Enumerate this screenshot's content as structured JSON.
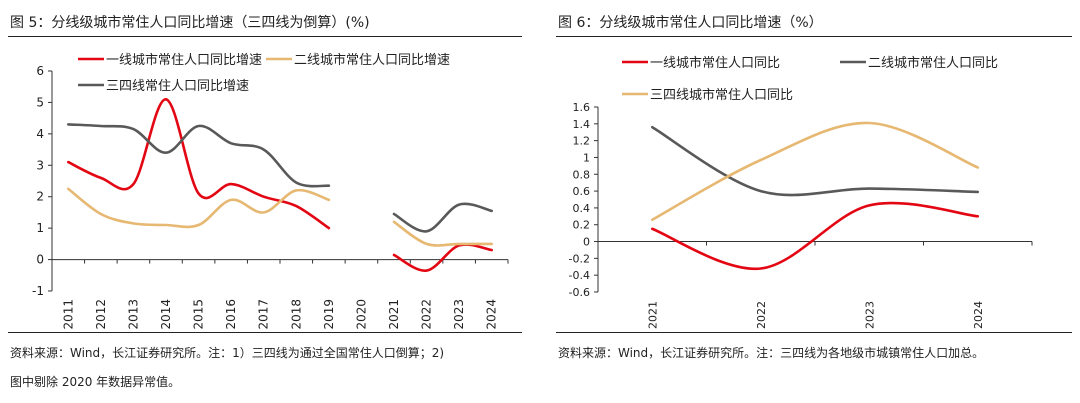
{
  "figures": {
    "left": {
      "title": "图 5：分线级城市常住人口同比增速（三四线为倒算）(%)",
      "source_line1": "资料来源：Wind，长江证券研究所。注：1）三四线为通过全国常住人口倒算；2)",
      "source_line2": "图中剔除 2020 年数据异常值。"
    },
    "right": {
      "title": "图 6：分线级城市常住人口同比增速（%）",
      "source_line1": "资料来源：Wind，长江证券研究所。注：三四线为各地级市城镇常住人口加总。"
    }
  },
  "chart_data": [
    {
      "type": "line",
      "title": "图 5：分线级城市常住人口同比增速（三四线为倒算）(%)",
      "categories": [
        "2011",
        "2012",
        "2013",
        "2014",
        "2015",
        "2016",
        "2017",
        "2018",
        "2019",
        "2020",
        "2021",
        "2022",
        "2023",
        "2024"
      ],
      "ylim": [
        -1,
        6
      ],
      "yticks": [
        -1,
        0,
        1,
        2,
        3,
        4,
        5,
        6
      ],
      "grid": false,
      "legend_position": "top",
      "series": [
        {
          "name": "一线城市常住人口同比增速",
          "color": "#e30613",
          "values": [
            3.1,
            2.6,
            2.4,
            5.1,
            2.1,
            2.4,
            2.0,
            1.7,
            1.0,
            null,
            0.15,
            -0.35,
            0.45,
            0.3
          ]
        },
        {
          "name": "二线城市常住人口同比增速",
          "color": "#e6b872",
          "values": [
            2.25,
            1.45,
            1.15,
            1.1,
            1.1,
            1.9,
            1.5,
            2.2,
            1.9,
            null,
            1.2,
            0.5,
            0.5,
            0.5
          ]
        },
        {
          "name": "三四线常住人口同比增速",
          "color": "#595959",
          "values": [
            4.3,
            4.25,
            4.15,
            3.4,
            4.25,
            3.7,
            3.5,
            2.45,
            2.35,
            null,
            1.45,
            0.9,
            1.75,
            1.55
          ]
        }
      ]
    },
    {
      "type": "line",
      "title": "图 6：分线级城市常住人口同比增速（%）",
      "categories": [
        "2021",
        "2022",
        "2023",
        "2024"
      ],
      "ylim": [
        -0.6,
        1.6
      ],
      "yticks": [
        -0.6,
        -0.4,
        -0.2,
        0,
        0.2,
        0.4,
        0.6,
        0.8,
        1,
        1.2,
        1.4,
        1.6
      ],
      "grid": false,
      "legend_position": "top",
      "series": [
        {
          "name": "一线城市常住人口同比",
          "color": "#e30613",
          "values": [
            0.15,
            -0.32,
            0.43,
            0.3
          ]
        },
        {
          "name": "二线城市常住人口同比",
          "color": "#595959",
          "values": [
            1.36,
            0.6,
            0.63,
            0.59
          ]
        },
        {
          "name": "三四线城市常住人口同比",
          "color": "#e6b872",
          "values": [
            0.26,
            0.97,
            1.41,
            0.88
          ]
        }
      ]
    }
  ]
}
